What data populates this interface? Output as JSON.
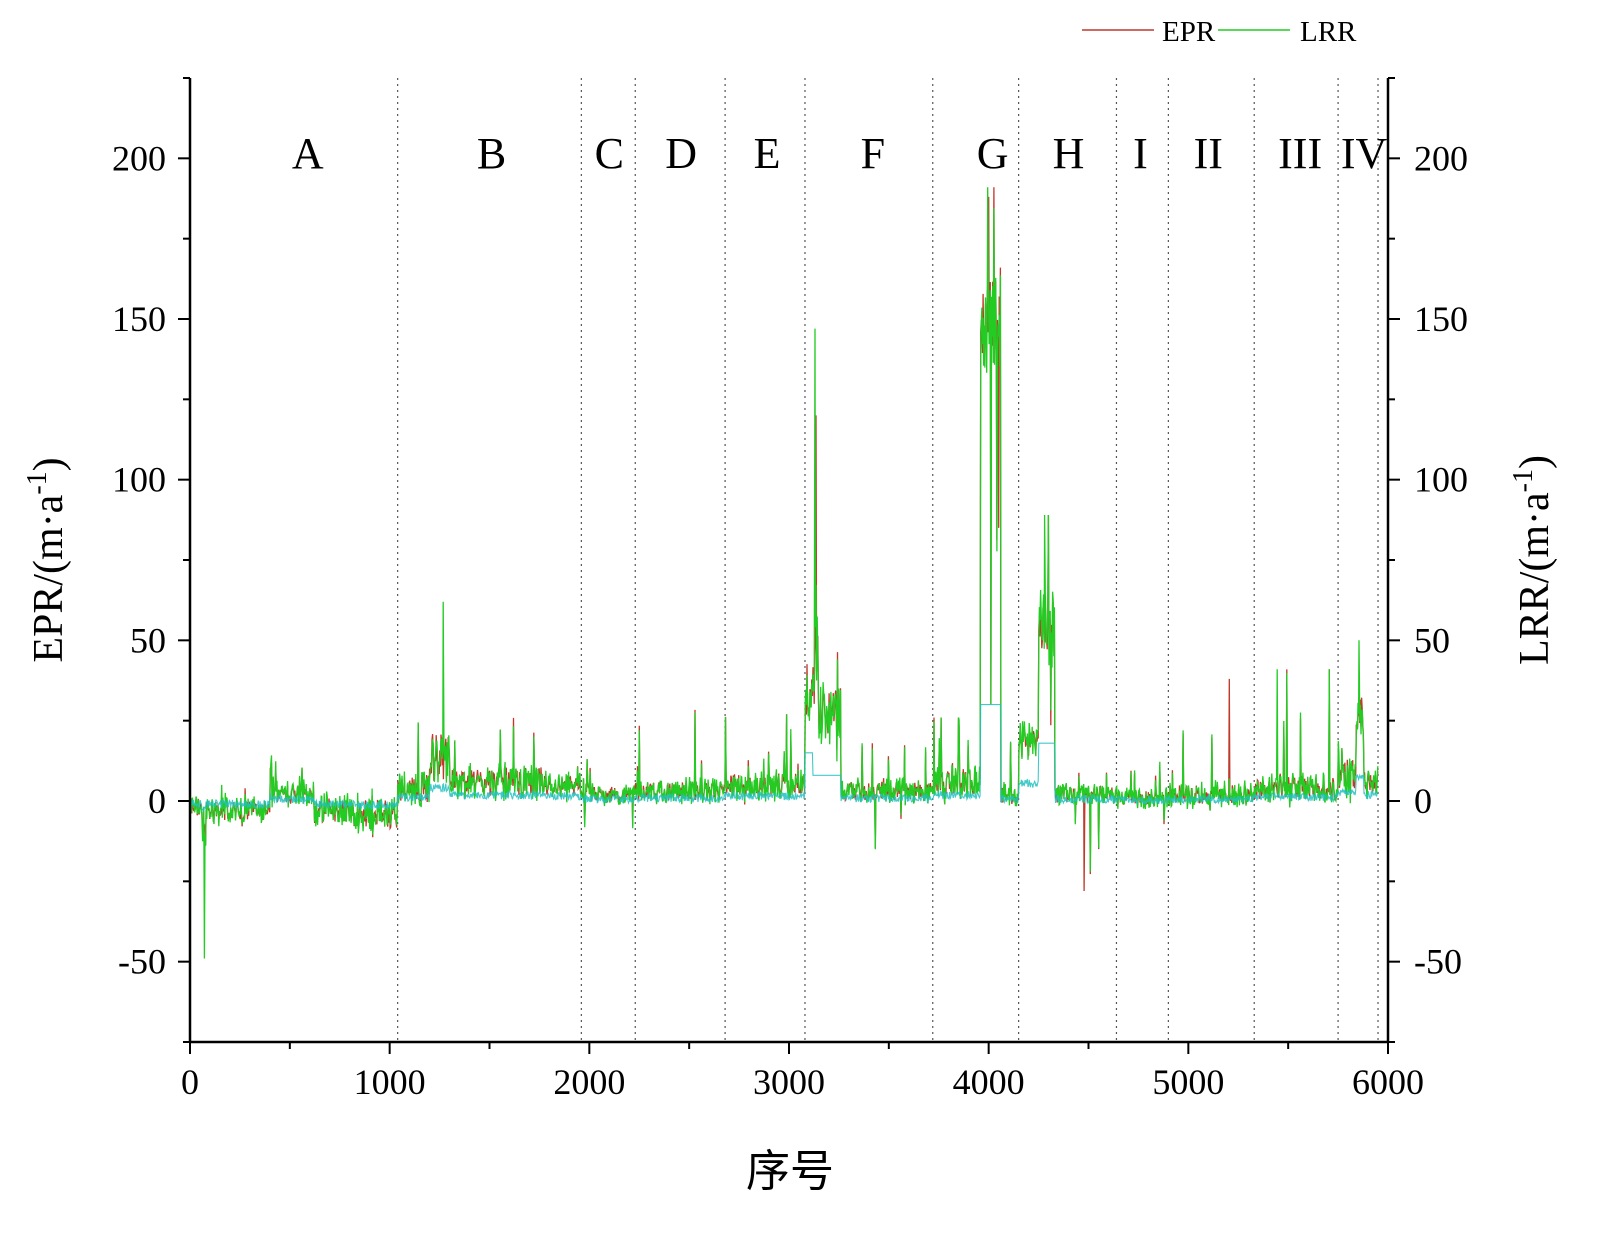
{
  "chart_data": {
    "type": "line",
    "xlabel": "序号",
    "ylabel_left": "EPR/(m·a",
    "ylabel_right": "LRR/(m·a",
    "ylabel_superscript": "-1",
    "ylabel_close": ")",
    "xlim": [
      0,
      6000
    ],
    "ylim": [
      -75,
      225
    ],
    "x_ticks": [
      0,
      1000,
      2000,
      3000,
      4000,
      5000,
      6000
    ],
    "x_tick_labels": [
      "0",
      "1000",
      "2000",
      "3000",
      "4000",
      "5000",
      "6000"
    ],
    "y_ticks": [
      -50,
      0,
      50,
      100,
      150,
      200
    ],
    "y_tick_labels": [
      "-50",
      "0",
      "50",
      "100",
      "150",
      "200"
    ],
    "grid": false,
    "legend_position": "top-right",
    "legend": [
      {
        "name": "EPR",
        "color": "#c0392b"
      },
      {
        "name": "LRR",
        "color": "#22cc22"
      }
    ],
    "region_boundaries": [
      1040,
      1960,
      2230,
      2680,
      3080,
      3720,
      4150,
      4640,
      4900,
      5330,
      5750,
      5950
    ],
    "regions": [
      {
        "label": "A",
        "x": 590
      },
      {
        "label": "B",
        "x": 1510
      },
      {
        "label": "C",
        "x": 2100
      },
      {
        "label": "D",
        "x": 2460
      },
      {
        "label": "E",
        "x": 2890
      },
      {
        "label": "F",
        "x": 3420
      },
      {
        "label": "G",
        "x": 4020
      },
      {
        "label": "H",
        "x": 4400
      },
      {
        "label": "I",
        "x": 4760
      },
      {
        "label": "II",
        "x": 5100
      },
      {
        "label": "III",
        "x": 5560
      },
      {
        "label": "IV",
        "x": 5880
      }
    ],
    "series_profile": [
      {
        "x0": 0,
        "x1": 60,
        "base": -2,
        "noise": 6,
        "min": -20,
        "max": 6
      },
      {
        "x0": 60,
        "x1": 80,
        "base": -10,
        "noise": 14,
        "min": -49,
        "max": 4
      },
      {
        "x0": 80,
        "x1": 200,
        "base": -3,
        "noise": 7,
        "min": -14,
        "max": 5
      },
      {
        "x0": 200,
        "x1": 400,
        "base": -3,
        "noise": 6,
        "min": -20,
        "max": 8
      },
      {
        "x0": 400,
        "x1": 420,
        "base": 5,
        "noise": 14,
        "min": -2,
        "max": 25
      },
      {
        "x0": 420,
        "x1": 620,
        "base": 2,
        "noise": 6,
        "min": -16,
        "max": 14
      },
      {
        "x0": 620,
        "x1": 820,
        "base": -3,
        "noise": 8,
        "min": -23,
        "max": 15
      },
      {
        "x0": 820,
        "x1": 1040,
        "base": -4,
        "noise": 9,
        "min": -24,
        "max": 6
      },
      {
        "x0": 1040,
        "x1": 1200,
        "base": 4,
        "noise": 9,
        "min": -20,
        "max": 31
      },
      {
        "x0": 1200,
        "x1": 1300,
        "base": 14,
        "noise": 15,
        "min": 0,
        "max": 62
      },
      {
        "x0": 1300,
        "x1": 1500,
        "base": 6,
        "noise": 8,
        "min": -11,
        "max": 24
      },
      {
        "x0": 1500,
        "x1": 1760,
        "base": 6,
        "noise": 9,
        "min": 0,
        "max": 26
      },
      {
        "x0": 1760,
        "x1": 1960,
        "base": 5,
        "noise": 6,
        "min": -1,
        "max": 14
      },
      {
        "x0": 1960,
        "x1": 2230,
        "base": 2,
        "noise": 5,
        "min": -11,
        "max": 13
      },
      {
        "x0": 2230,
        "x1": 2680,
        "base": 3,
        "noise": 6,
        "min": -1,
        "max": 32
      },
      {
        "x0": 2680,
        "x1": 3080,
        "base": 5,
        "noise": 7,
        "min": -4,
        "max": 27
      },
      {
        "x0": 3080,
        "x1": 3120,
        "base": 32,
        "noise": 12,
        "min": 15,
        "max": 62
      },
      {
        "x0": 3120,
        "x1": 3150,
        "base": 45,
        "noise": 30,
        "min": -7,
        "max": 147
      },
      {
        "x0": 3150,
        "x1": 3260,
        "base": 28,
        "noise": 15,
        "min": 8,
        "max": 64
      },
      {
        "x0": 3260,
        "x1": 3720,
        "base": 3,
        "noise": 6,
        "min": -15,
        "max": 18
      },
      {
        "x0": 3720,
        "x1": 3960,
        "base": 6,
        "noise": 8,
        "min": -1,
        "max": 26
      },
      {
        "x0": 3960,
        "x1": 4060,
        "base": 150,
        "noise": 25,
        "min": 30,
        "max": 191
      },
      {
        "x0": 4060,
        "x1": 4150,
        "base": 2,
        "noise": 6,
        "min": -3,
        "max": 85
      },
      {
        "x0": 4150,
        "x1": 4250,
        "base": 18,
        "noise": 10,
        "min": -2,
        "max": 34
      },
      {
        "x0": 4250,
        "x1": 4330,
        "base": 55,
        "noise": 18,
        "min": 18,
        "max": 89
      },
      {
        "x0": 4330,
        "x1": 4640,
        "base": 2,
        "noise": 5,
        "min": -28,
        "max": 21
      },
      {
        "x0": 4640,
        "x1": 4900,
        "base": 1,
        "noise": 5,
        "min": -10,
        "max": 14
      },
      {
        "x0": 4900,
        "x1": 5330,
        "base": 2,
        "noise": 6,
        "min": -3,
        "max": 38
      },
      {
        "x0": 5330,
        "x1": 5750,
        "base": 4,
        "noise": 7,
        "min": -2,
        "max": 41
      },
      {
        "x0": 5750,
        "x1": 5840,
        "base": 8,
        "noise": 10,
        "min": -1,
        "max": 28
      },
      {
        "x0": 5840,
        "x1": 5880,
        "base": 25,
        "noise": 15,
        "min": 5,
        "max": 50
      },
      {
        "x0": 5880,
        "x1": 5950,
        "base": 6,
        "noise": 8,
        "min": -2,
        "max": 20
      }
    ],
    "series": [
      {
        "name": "EPR",
        "color": "#c0392b"
      },
      {
        "name": "LRR",
        "color": "#22cc22"
      },
      {
        "name": "",
        "color": "#22c0c0"
      }
    ]
  }
}
